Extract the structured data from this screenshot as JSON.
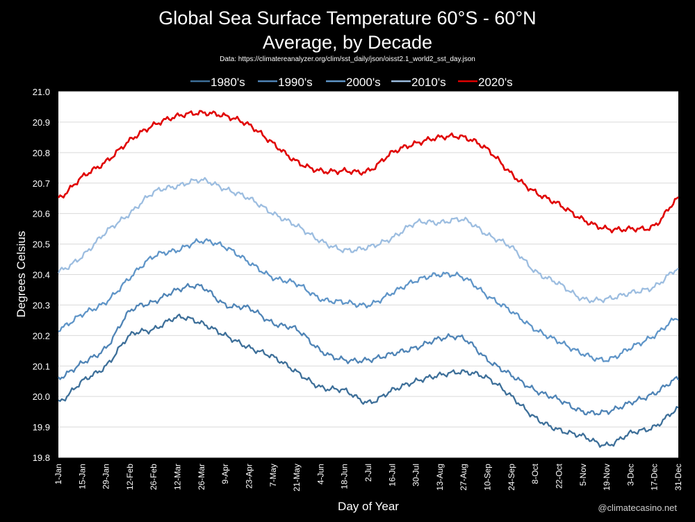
{
  "title_line1": "Global Sea Surface Temperature 60°S - 60°N",
  "title_line2": "Average, by Decade",
  "source": "Data: https://climatereanalyzer.org/clim/sst_daily/json/oisst2.1_world2_sst_day.json",
  "credit": "@climatecasino.net",
  "colors": {
    "1980s": "#3d6f99",
    "1990s": "#4f84b6",
    "2000s": "#5f95c8",
    "2010s": "#9cbde0",
    "2020s": "#e00000",
    "background": "#000000",
    "plot_area": "#ffffff",
    "grid": "#d9d9d9"
  },
  "chart_data": {
    "type": "line",
    "xlabel": "Day of Year",
    "ylabel": "Degrees Celsius",
    "ylim": [
      19.8,
      21.0
    ],
    "yticks": [
      "19.8",
      "19.9",
      "20.0",
      "20.1",
      "20.2",
      "20.3",
      "20.4",
      "20.5",
      "20.6",
      "20.7",
      "20.8",
      "20.9",
      "21.0"
    ],
    "xlim": [
      1,
      365
    ],
    "x_tick_days": [
      1,
      15,
      29,
      43,
      57,
      71,
      85,
      99,
      113,
      127,
      141,
      155,
      169,
      183,
      197,
      211,
      225,
      239,
      253,
      267,
      281,
      295,
      309,
      323,
      337,
      351,
      365
    ],
    "x_tick_labels": [
      "1-Jan",
      "15-Jan",
      "29-Jan",
      "12-Feb",
      "26-Feb",
      "12-Mar",
      "26-Mar",
      "9-Apr",
      "23-Apr",
      "7-May",
      "21-May",
      "4-Jun",
      "18-Jun",
      "2-Jul",
      "16-Jul",
      "30-Jul",
      "13-Aug",
      "27-Aug",
      "10-Sep",
      "24-Sep",
      "8-Oct",
      "22-Oct",
      "5-Nov",
      "19-Nov",
      "3-Dec",
      "17-Dec",
      "31-Dec"
    ],
    "grid": "horizontal",
    "legend_position": "top",
    "series": [
      {
        "name": "1980's",
        "x": [
          1,
          15,
          29,
          43,
          57,
          71,
          85,
          99,
          113,
          127,
          141,
          155,
          169,
          183,
          197,
          211,
          225,
          239,
          253,
          267,
          281,
          295,
          309,
          323,
          337,
          351,
          365
        ],
        "values": [
          19.98,
          20.05,
          20.1,
          20.2,
          20.22,
          20.26,
          20.24,
          20.2,
          20.16,
          20.13,
          20.08,
          20.03,
          20.02,
          19.98,
          20.02,
          20.05,
          20.07,
          20.08,
          20.06,
          20.0,
          19.93,
          19.89,
          19.87,
          19.84,
          19.88,
          19.9,
          19.96
        ]
      },
      {
        "name": "1990's",
        "x": [
          1,
          15,
          29,
          43,
          57,
          71,
          85,
          99,
          113,
          127,
          141,
          155,
          169,
          183,
          197,
          211,
          225,
          239,
          253,
          267,
          281,
          295,
          309,
          323,
          337,
          351,
          365
        ],
        "values": [
          20.06,
          20.11,
          20.16,
          20.28,
          20.31,
          20.35,
          20.36,
          20.3,
          20.29,
          20.24,
          20.22,
          20.15,
          20.12,
          20.12,
          20.14,
          20.16,
          20.19,
          20.19,
          20.12,
          20.07,
          20.02,
          19.99,
          19.95,
          19.95,
          19.98,
          20.01,
          20.06
        ]
      },
      {
        "name": "2000's",
        "x": [
          1,
          15,
          29,
          43,
          57,
          71,
          85,
          99,
          113,
          127,
          141,
          155,
          169,
          183,
          197,
          211,
          225,
          239,
          253,
          267,
          281,
          295,
          309,
          323,
          337,
          351,
          365
        ],
        "values": [
          20.22,
          20.27,
          20.31,
          20.39,
          20.46,
          20.48,
          20.51,
          20.49,
          20.44,
          20.39,
          20.37,
          20.32,
          20.31,
          20.3,
          20.34,
          20.38,
          20.4,
          20.39,
          20.33,
          20.28,
          20.22,
          20.18,
          20.14,
          20.12,
          20.16,
          20.2,
          20.26
        ]
      },
      {
        "name": "2010's",
        "x": [
          1,
          15,
          29,
          43,
          57,
          71,
          85,
          99,
          113,
          127,
          141,
          155,
          169,
          183,
          197,
          211,
          225,
          239,
          253,
          267,
          281,
          295,
          309,
          323,
          337,
          351,
          365
        ],
        "values": [
          20.41,
          20.46,
          20.54,
          20.6,
          20.67,
          20.69,
          20.71,
          20.68,
          20.65,
          20.6,
          20.56,
          20.51,
          20.48,
          20.49,
          20.52,
          20.57,
          20.57,
          20.58,
          20.53,
          20.49,
          20.41,
          20.37,
          20.32,
          20.32,
          20.34,
          20.36,
          20.42
        ]
      },
      {
        "name": "2020's",
        "x": [
          1,
          15,
          29,
          43,
          57,
          71,
          85,
          99,
          113,
          127,
          141,
          155,
          169,
          183,
          197,
          211,
          225,
          239,
          253,
          267,
          281,
          295,
          309,
          323,
          337,
          351,
          365
        ],
        "values": [
          20.65,
          20.72,
          20.77,
          20.84,
          20.89,
          20.92,
          20.93,
          20.92,
          20.89,
          20.83,
          20.77,
          20.74,
          20.74,
          20.74,
          20.8,
          20.83,
          20.85,
          20.85,
          20.81,
          20.73,
          20.67,
          20.63,
          20.58,
          20.55,
          20.55,
          20.56,
          20.65
        ]
      }
    ]
  }
}
